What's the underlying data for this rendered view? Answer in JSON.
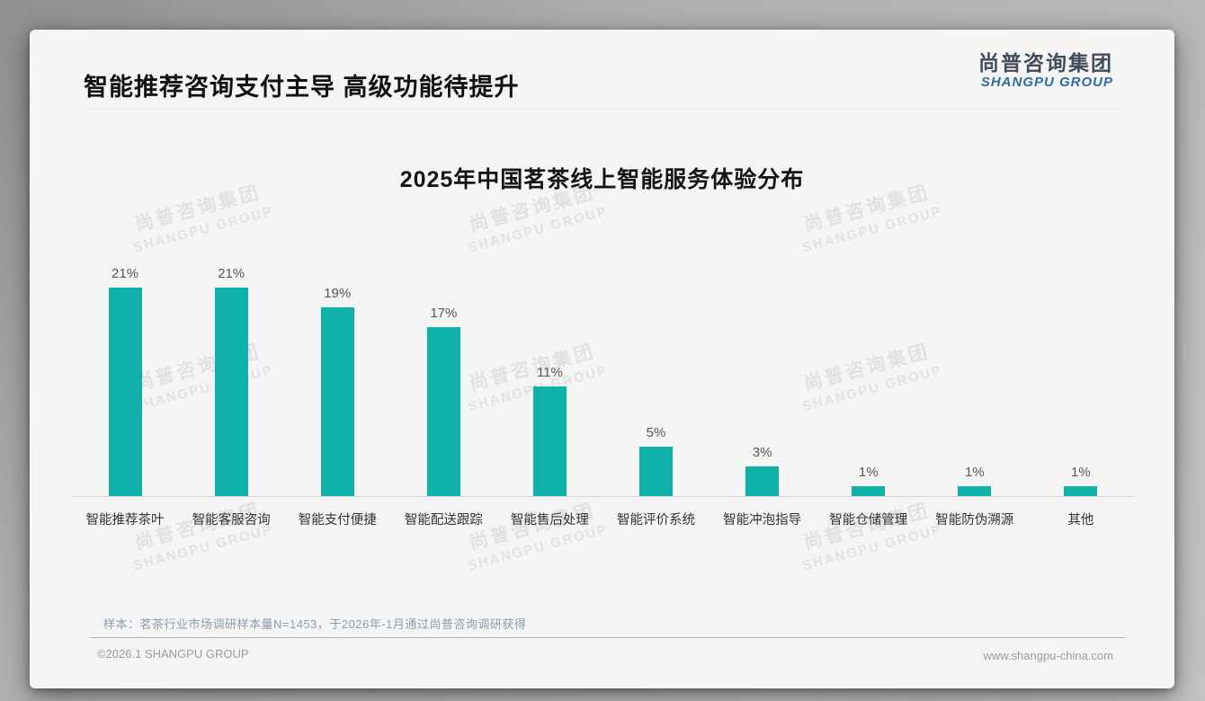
{
  "page": {
    "header_title": "智能推荐咨询支付主导 高级功能待提升",
    "logo": {
      "cn": "尚普咨询集团",
      "en": "SHANGPU GROUP"
    },
    "watermark": {
      "cn": "尚普咨询集团",
      "en": "SHANGPU GROUP"
    },
    "note": "样本：茗茶行业市场调研样本量N=1453，于2026年-1月通过尚普咨询调研获得",
    "footer_left": "©2026.1 SHANGPU GROUP",
    "footer_right": "www.shangpu-china.com"
  },
  "colors": {
    "bar": "#0fb1a9",
    "card_bg": "#f5f5f5",
    "logo_en_blue": "#2f6ba6",
    "note_blue_gray": "#8a9cb0"
  },
  "chart_data": {
    "type": "bar",
    "title": "2025年中国茗茶线上智能服务体验分布",
    "categories": [
      "智能推荐茶叶",
      "智能客服咨询",
      "智能支付便捷",
      "智能配送跟踪",
      "智能售后处理",
      "智能评价系统",
      "智能冲泡指导",
      "智能仓储管理",
      "智能防伪溯源",
      "其他"
    ],
    "values": [
      21,
      21,
      19,
      17,
      11,
      5,
      3,
      1,
      1,
      1
    ],
    "data_labels": [
      "21%",
      "21%",
      "19%",
      "17%",
      "11%",
      "5%",
      "3%",
      "1%",
      "1%",
      "1%"
    ],
    "unit": "%",
    "xlabel": "",
    "ylabel": "",
    "ylim": [
      0,
      23
    ],
    "grid": false,
    "legend": false,
    "bar_color": "#0fb1a9"
  }
}
